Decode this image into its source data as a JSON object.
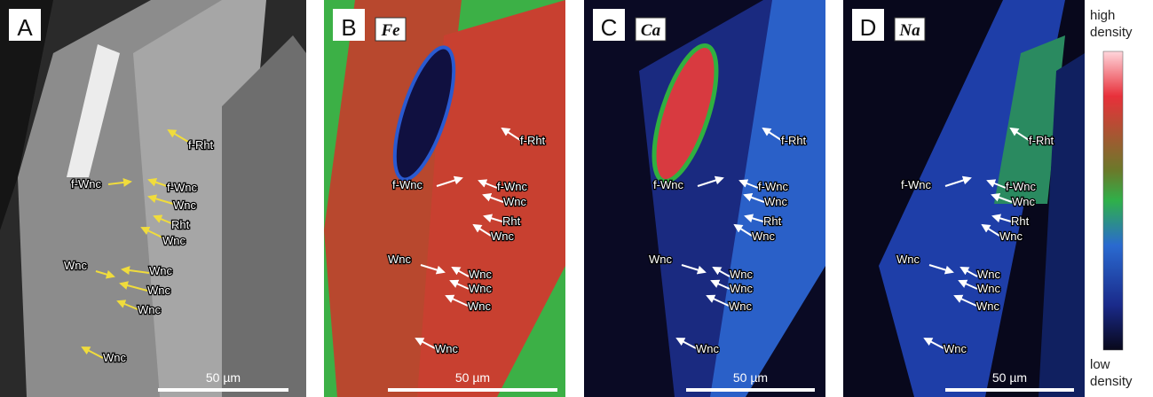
{
  "panels": [
    {
      "letter": "A",
      "annotations": [
        "f-Rht",
        "f-Wnc",
        "f-Wnc",
        "Wnc",
        "Rht",
        "Wnc",
        "Wnc",
        "Wnc",
        "Wnc",
        "Wnc",
        "Wnc"
      ],
      "scale_bar": "50 µm"
    },
    {
      "letter": "B",
      "element": "Fe",
      "annotations": [
        "f-Rht",
        "f-Wnc",
        "f-Wnc",
        "Wnc",
        "Rht",
        "Wnc",
        "Wnc",
        "Wnc",
        "Wnc",
        "Wnc",
        "Wnc"
      ],
      "scale_bar": "50 µm"
    },
    {
      "letter": "C",
      "element": "Ca",
      "annotations": [
        "f-Rht",
        "f-Wnc",
        "f-Wnc",
        "Wnc",
        "Rht",
        "Wnc",
        "Wnc",
        "Wnc",
        "Wnc",
        "Wnc",
        "Wnc"
      ],
      "scale_bar": "50 µm"
    },
    {
      "letter": "D",
      "element": "Na",
      "annotations": [
        "f-Rht",
        "f-Wnc",
        "f-Wnc",
        "Wnc",
        "Rht",
        "Wnc",
        "Wnc",
        "Wnc",
        "Wnc",
        "Wnc",
        "Wnc"
      ],
      "scale_bar": "50 µm"
    }
  ],
  "colorbar": {
    "high": "high density",
    "low": "low density"
  }
}
